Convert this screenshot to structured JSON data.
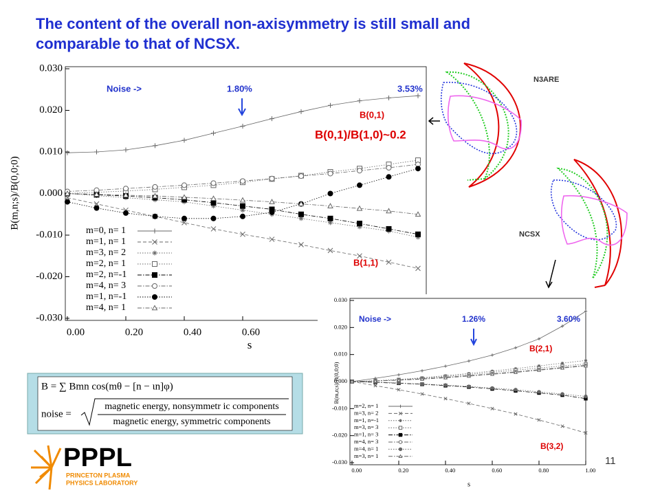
{
  "title": "The content of the overall non-axisymmetry is still small and comparable to that of NCSX.",
  "chart_data": [
    {
      "type": "line",
      "ylabel": "B(m,n;s)/B(0,0;0)",
      "xlabel": "s",
      "xlim": [
        0,
        1.2
      ],
      "ylim": [
        -0.03,
        0.03
      ],
      "xticks": [
        {
          "value": 0,
          "label": "0.00"
        },
        {
          "value": 0.2,
          "label": "0.20"
        },
        {
          "value": 0.4,
          "label": "0.40"
        },
        {
          "value": 0.6,
          "label": "0.60"
        }
      ],
      "yticks": [
        {
          "value": 0.03,
          "label": "0.030"
        },
        {
          "value": 0.02,
          "label": "0.020"
        },
        {
          "value": 0.01,
          "label": "0.010"
        },
        {
          "value": 0,
          "label": "0.000"
        },
        {
          "value": -0.01,
          "label": "-0.010"
        },
        {
          "value": -0.02,
          "label": "-0.020"
        },
        {
          "value": -0.03,
          "label": "-0.030"
        }
      ],
      "legend": "lower left",
      "x": [
        0,
        0.1,
        0.2,
        0.3,
        0.4,
        0.5,
        0.6,
        0.7,
        0.8,
        0.9,
        1.0,
        1.1,
        1.2
      ],
      "series": [
        {
          "name": "m=0, n= 1",
          "color": "#666666",
          "marker": "plus",
          "dash": "solid",
          "values": [
            0.0098,
            0.01,
            0.0105,
            0.0115,
            0.0128,
            0.0145,
            0.0162,
            0.018,
            0.0197,
            0.0212,
            0.0223,
            0.023,
            0.0235
          ]
        },
        {
          "name": "m=1, n= 1",
          "color": "#666666",
          "marker": "x",
          "dash": "dashed",
          "values": [
            -0.001,
            -0.0025,
            -0.004,
            -0.0055,
            -0.007,
            -0.0085,
            -0.0098,
            -0.011,
            -0.0123,
            -0.0137,
            -0.015,
            -0.0165,
            -0.018
          ]
        },
        {
          "name": "m=3, n= 2",
          "color": "#666666",
          "marker": "star",
          "dash": "dotted",
          "values": [
            0,
            -0.0005,
            -0.001,
            -0.0015,
            -0.002,
            -0.003,
            -0.004,
            -0.005,
            -0.006,
            -0.007,
            -0.008,
            -0.009,
            -0.0105
          ]
        },
        {
          "name": "m=2, n= 1",
          "color": "#666666",
          "marker": "square-open",
          "dash": "dotted",
          "values": [
            0,
            0.0003,
            0.0006,
            0.001,
            0.0015,
            0.002,
            0.0027,
            0.0035,
            0.0043,
            0.0052,
            0.006,
            0.007,
            0.008
          ]
        },
        {
          "name": "m=2, n=-1",
          "color": "#000000",
          "marker": "square",
          "dash": "dashdot",
          "values": [
            0,
            -0.0003,
            -0.0006,
            -0.001,
            -0.0015,
            -0.0022,
            -0.003,
            -0.0038,
            -0.005,
            -0.006,
            -0.0072,
            -0.0085,
            -0.0098
          ]
        },
        {
          "name": "m=4, n= 3",
          "color": "#666666",
          "marker": "circle-open",
          "dash": "dashdot",
          "values": [
            0.0005,
            0.0008,
            0.0012,
            0.0016,
            0.002,
            0.0025,
            0.003,
            0.0036,
            0.0042,
            0.0048,
            0.0055,
            0.0062,
            0.007
          ]
        },
        {
          "name": "m=1, n=-1",
          "color": "#000000",
          "marker": "circle",
          "dash": "dotted",
          "values": [
            -0.002,
            -0.0035,
            -0.0047,
            -0.0055,
            -0.006,
            -0.006,
            -0.0055,
            -0.0045,
            -0.0025,
            0,
            0.002,
            0.004,
            0.006
          ]
        },
        {
          "name": "m=4, n= 1",
          "color": "#666666",
          "marker": "triangle-open",
          "dash": "dashdot",
          "values": [
            0,
            -0.0002,
            -0.0004,
            -0.0006,
            -0.0009,
            -0.0012,
            -0.0016,
            -0.002,
            -0.0025,
            -0.003,
            -0.0036,
            -0.0042,
            -0.005
          ]
        }
      ],
      "annotations": [
        "Noise ->",
        "1.80%",
        "3.53%",
        "B(0,1)",
        "B(0,1)/B(1,0)~0.2",
        "B(1,1)"
      ]
    },
    {
      "type": "line",
      "ylabel": "B(m,n;s)/B(0,0;0)",
      "xlabel": "s",
      "xlim": [
        0,
        1
      ],
      "ylim": [
        -0.03,
        0.03
      ],
      "xticks": [
        {
          "value": 0,
          "label": "0.00"
        },
        {
          "value": 0.2,
          "label": "0.20"
        },
        {
          "value": 0.4,
          "label": "0.40"
        },
        {
          "value": 0.6,
          "label": "0.60"
        },
        {
          "value": 0.8,
          "label": "0.80"
        },
        {
          "value": 1,
          "label": "1.00"
        }
      ],
      "yticks": [
        {
          "value": 0.03,
          "label": "0.030"
        },
        {
          "value": 0.02,
          "label": "0.020"
        },
        {
          "value": 0.01,
          "label": "0.010"
        },
        {
          "value": 0,
          "label": "0.000"
        },
        {
          "value": -0.01,
          "label": "-0.010"
        },
        {
          "value": -0.02,
          "label": "-0.020"
        },
        {
          "value": -0.03,
          "label": "-0.030"
        }
      ],
      "legend": "lower left",
      "x": [
        0,
        0.1,
        0.2,
        0.3,
        0.4,
        0.5,
        0.6,
        0.7,
        0.8,
        0.9,
        1.0
      ],
      "series": [
        {
          "name": "m=2, n= 1",
          "color": "#666666",
          "marker": "plus",
          "dash": "solid",
          "values": [
            0,
            0.0012,
            0.0025,
            0.004,
            0.0057,
            0.0076,
            0.0098,
            0.0125,
            0.0158,
            0.0205,
            0.026
          ]
        },
        {
          "name": "m=3, n= 2",
          "color": "#666666",
          "marker": "x",
          "dash": "dashed",
          "values": [
            0,
            -0.0015,
            -0.003,
            -0.0046,
            -0.0063,
            -0.0081,
            -0.01,
            -0.012,
            -0.0142,
            -0.0165,
            -0.019
          ]
        },
        {
          "name": "m=1, n=-1",
          "color": "#666666",
          "marker": "star",
          "dash": "dotted",
          "values": [
            0,
            0.0003,
            0.0008,
            0.0014,
            0.0022,
            0.003,
            0.0039,
            0.0048,
            0.0058,
            0.0068,
            0.0078
          ]
        },
        {
          "name": "m=3, n= 3",
          "color": "#666666",
          "marker": "square-open",
          "dash": "dotted",
          "values": [
            0,
            0.0003,
            0.0007,
            0.0012,
            0.0019,
            0.0026,
            0.0034,
            0.0042,
            0.005,
            0.0058,
            0.0065
          ]
        },
        {
          "name": "m=1, n= 3",
          "color": "#000000",
          "marker": "square",
          "dash": "dashdot",
          "values": [
            0,
            -0.0003,
            -0.0006,
            -0.001,
            -0.0015,
            -0.002,
            -0.0027,
            -0.0034,
            -0.0042,
            -0.005,
            -0.0063
          ]
        },
        {
          "name": "m=4, n= 3",
          "color": "#666666",
          "marker": "circle-open",
          "dash": "dashdot",
          "values": [
            0,
            0.0002,
            0.0006,
            0.001,
            0.0016,
            0.0022,
            0.0029,
            0.0036,
            0.0044,
            0.0052,
            0.006
          ]
        },
        {
          "name": "m=4, n= 1",
          "color": "#666666",
          "marker": "circle",
          "dash": "dotted",
          "values": [
            0,
            -0.0002,
            -0.0005,
            -0.0009,
            -0.0013,
            -0.0018,
            -0.0024,
            -0.003,
            -0.0038,
            -0.0046,
            -0.0055
          ]
        },
        {
          "name": "m=3, n= 1",
          "color": "#666666",
          "marker": "triangle-open",
          "dash": "dashdot",
          "values": [
            0,
            0.0002,
            0.0005,
            0.0009,
            0.0014,
            0.002,
            0.0027,
            0.0034,
            0.0042,
            0.005,
            0.0058
          ]
        }
      ],
      "annotations": [
        "Noise ->",
        "1.26%",
        "3.60%",
        "B(2,1)",
        "B(3,2)"
      ]
    }
  ],
  "shape_labels": [
    "N3ARE",
    "NCSX"
  ],
  "formula": {
    "line1": "B = ∑ Bmn cos(mθ − [n − ιn]φ)",
    "noise": "noise =",
    "numerator": "magnetic energy, nonsymmetr ic components",
    "denominator": "magnetic energy, symmetric components"
  },
  "logo": {
    "name": "PPPL",
    "line1": "PRINCETON PLASMA",
    "line2": "PHYSICS LABORATORY"
  },
  "page_number": "11"
}
